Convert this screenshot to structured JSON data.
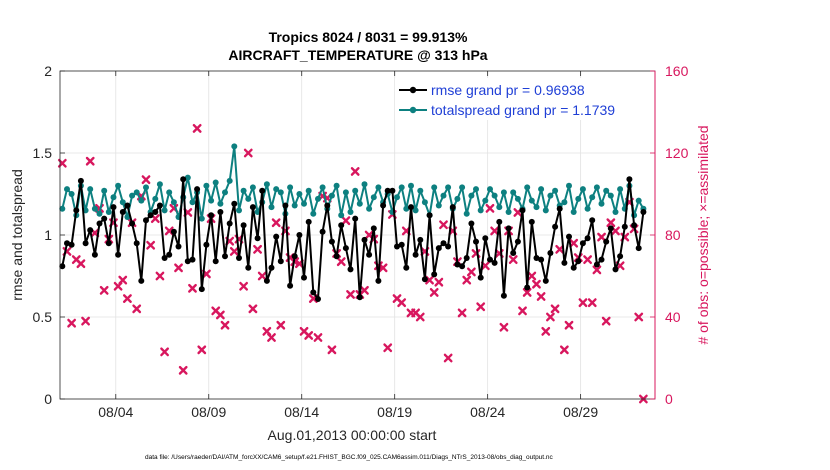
{
  "chart_data": {
    "type": "line",
    "title": "Tropics 8024 / 8031 = 99.913%",
    "subtitle": "AIRCRAFT_TEMPERATURE @ 313 hPa",
    "xlabel": "Aug.01,2013 00:00:00 start",
    "ylabel": "rmse and totalspread",
    "y2label": "# of obs: o=possible; ×=assimilated",
    "footnote": "data file: /Users/raeder/DAI/ATM_forcXX/CAM6_setup/f.e21.FHIST_BGC.f09_025.CAM6assim.011/Diags_NTrS_2013-08/obs_diag_output.nc",
    "xlim": [
      1,
      33
    ],
    "ylim": [
      0,
      2
    ],
    "y2lim": [
      0,
      160
    ],
    "xticks": [
      4,
      9,
      14,
      19,
      24,
      29
    ],
    "xtick_labels": [
      "08/04",
      "08/09",
      "08/14",
      "08/19",
      "08/24",
      "08/29"
    ],
    "yticks": [
      0,
      0.5,
      1,
      1.5,
      2
    ],
    "ytick_labels": [
      "0",
      "0.5",
      "1",
      "1.5",
      "2"
    ],
    "y2ticks": [
      0,
      40,
      80,
      120,
      160
    ],
    "y2tick_labels": [
      "0",
      "40",
      "80",
      "120",
      "160"
    ],
    "grid": true,
    "legend_position": "top-right",
    "colors": {
      "rmse": "#000000",
      "spread": "#0d8080",
      "obs": "#d8175e",
      "legend_text": "#1f3fd6",
      "right_axis": "#d8175e",
      "grid": "#e2e2e2"
    },
    "series": [
      {
        "name": "rmse grand pr = 0.96938",
        "color": "#000000",
        "x": [
          1.125,
          1.375,
          1.625,
          1.875,
          2.125,
          2.375,
          2.625,
          2.875,
          3.125,
          3.375,
          3.625,
          3.875,
          4.125,
          4.375,
          4.625,
          4.875,
          5.125,
          5.375,
          5.625,
          5.875,
          6.125,
          6.375,
          6.625,
          6.875,
          7.125,
          7.375,
          7.625,
          7.875,
          8.125,
          8.375,
          8.625,
          8.875,
          9.125,
          9.375,
          9.625,
          9.875,
          10.125,
          10.375,
          10.625,
          10.875,
          11.125,
          11.375,
          11.625,
          11.875,
          12.125,
          12.375,
          12.625,
          12.875,
          13.125,
          13.375,
          13.625,
          13.875,
          14.125,
          14.375,
          14.625,
          14.875,
          15.125,
          15.375,
          15.625,
          15.875,
          16.125,
          16.375,
          16.625,
          16.875,
          17.125,
          17.375,
          17.625,
          17.875,
          18.125,
          18.375,
          18.625,
          18.875,
          19.125,
          19.375,
          19.625,
          19.875,
          20.125,
          20.375,
          20.625,
          20.875,
          21.125,
          21.375,
          21.625,
          21.875,
          22.125,
          22.375,
          22.625,
          22.875,
          23.125,
          23.375,
          23.625,
          23.875,
          24.125,
          24.375,
          24.625,
          24.875,
          25.125,
          25.375,
          25.625,
          25.875,
          26.125,
          26.375,
          26.625,
          26.875,
          27.125,
          27.375,
          27.625,
          27.875,
          28.125,
          28.375,
          28.625,
          28.875,
          29.125,
          29.375,
          29.625,
          29.875,
          30.125,
          30.375,
          30.625,
          30.875,
          31.125,
          31.375,
          31.625,
          31.875,
          32.125,
          32.375
        ],
        "values": [
          0.81,
          0.95,
          0.94,
          1.15,
          1.33,
          0.95,
          1.03,
          0.88,
          1.07,
          1.1,
          0.95,
          1.17,
          0.88,
          1.14,
          1.18,
          1.07,
          0.95,
          0.72,
          1.09,
          1.12,
          1.14,
          1.18,
          0.86,
          0.88,
          1.02,
          0.93,
          1.34,
          0.84,
          0.85,
          1.28,
          0.67,
          0.94,
          1.12,
          0.84,
          1.14,
          0.87,
          1.07,
          1.19,
          0.86,
          1.06,
          0.8,
          1.17,
          0.98,
          1.27,
          0.72,
          0.8,
          0.99,
          0.84,
          1.18,
          0.69,
          0.87,
          1.0,
          0.74,
          1.08,
          0.65,
          0.61,
          1.02,
          1.18,
          0.96,
          0.87,
          1.06,
          0.92,
          0.79,
          1.1,
          0.62,
          0.97,
          0.88,
          1.04,
          0.72,
          1.18,
          1.27,
          1.27,
          0.93,
          0.94,
          0.8,
          1.17,
          0.88,
          0.97,
          0.73,
          1.12,
          0.76,
          0.92,
          0.95,
          0.93,
          1.17,
          0.82,
          0.81,
          0.86,
          1.07,
          0.96,
          0.74,
          0.98,
          0.85,
          0.83,
          1.08,
          0.63,
          1.04,
          0.89,
          0.96,
          1.15,
          0.68,
          1.08,
          0.86,
          0.85,
          0.72,
          0.89,
          1.05,
          1.16,
          0.83,
          0.99,
          0.8,
          0.84,
          0.95,
          0.98,
          1.09,
          0.82,
          0.85,
          0.96,
          1.04,
          0.79,
          0.87,
          1.05,
          1.34,
          1.06,
          0.92,
          1.14
        ]
      },
      {
        "name": "totalspread grand pr = 1.1739",
        "color": "#0d8080",
        "x": [
          1.125,
          1.375,
          1.625,
          1.875,
          2.125,
          2.375,
          2.625,
          2.875,
          3.125,
          3.375,
          3.625,
          3.875,
          4.125,
          4.375,
          4.625,
          4.875,
          5.125,
          5.375,
          5.625,
          5.875,
          6.125,
          6.375,
          6.625,
          6.875,
          7.125,
          7.375,
          7.625,
          7.875,
          8.125,
          8.375,
          8.625,
          8.875,
          9.125,
          9.375,
          9.625,
          9.875,
          10.125,
          10.375,
          10.625,
          10.875,
          11.125,
          11.375,
          11.625,
          11.875,
          12.125,
          12.375,
          12.625,
          12.875,
          13.125,
          13.375,
          13.625,
          13.875,
          14.125,
          14.375,
          14.625,
          14.875,
          15.125,
          15.375,
          15.625,
          15.875,
          16.125,
          16.375,
          16.625,
          16.875,
          17.125,
          17.375,
          17.625,
          17.875,
          18.125,
          18.375,
          18.625,
          18.875,
          19.125,
          19.375,
          19.625,
          19.875,
          20.125,
          20.375,
          20.625,
          20.875,
          21.125,
          21.375,
          21.625,
          21.875,
          22.125,
          22.375,
          22.625,
          22.875,
          23.125,
          23.375,
          23.625,
          23.875,
          24.125,
          24.375,
          24.625,
          24.875,
          25.125,
          25.375,
          25.625,
          25.875,
          26.125,
          26.375,
          26.625,
          26.875,
          27.125,
          27.375,
          27.625,
          27.875,
          28.125,
          28.375,
          28.625,
          28.875,
          29.125,
          29.375,
          29.625,
          29.875,
          30.125,
          30.375,
          30.625,
          30.875,
          31.125,
          31.375,
          31.625,
          31.875,
          32.125,
          32.375
        ],
        "values": [
          1.16,
          1.28,
          1.25,
          1.12,
          1.3,
          1.15,
          1.28,
          1.16,
          1.13,
          1.27,
          1.14,
          1.23,
          1.3,
          1.2,
          1.11,
          1.24,
          1.26,
          1.21,
          1.29,
          1.14,
          1.22,
          1.31,
          1.15,
          1.26,
          1.2,
          1.11,
          1.23,
          1.35,
          1.2,
          1.26,
          1.1,
          1.3,
          1.21,
          1.32,
          1.19,
          1.26,
          1.33,
          1.54,
          1.15,
          1.27,
          1.22,
          1.29,
          1.14,
          1.2,
          1.31,
          1.17,
          1.28,
          1.26,
          1.13,
          1.29,
          1.18,
          1.25,
          1.19,
          1.27,
          1.13,
          1.22,
          1.29,
          1.16,
          1.24,
          1.3,
          1.12,
          1.26,
          1.14,
          1.27,
          1.19,
          1.31,
          1.16,
          1.23,
          1.29,
          1.2,
          1.25,
          1.14,
          1.23,
          1.29,
          1.16,
          1.3,
          1.15,
          1.27,
          1.2,
          1.12,
          1.29,
          1.18,
          1.24,
          1.29,
          1.16,
          1.22,
          1.29,
          1.13,
          1.24,
          1.28,
          1.15,
          1.21,
          1.28,
          1.24,
          1.17,
          1.26,
          1.14,
          1.26,
          1.22,
          1.16,
          1.29,
          1.21,
          1.17,
          1.28,
          1.15,
          1.24,
          1.27,
          1.18,
          1.2,
          1.3,
          1.14,
          1.22,
          1.28,
          1.16,
          1.23,
          1.29,
          1.19,
          1.27,
          1.24,
          1.14,
          1.28,
          1.16,
          1.3,
          1.12,
          1.21,
          1.16
        ]
      }
    ],
    "obs_count": {
      "name": "# of obs (assimilated)",
      "marker": "x",
      "color": "#d8175e",
      "x": [
        1.125,
        1.375,
        1.625,
        1.875,
        2.125,
        2.375,
        2.625,
        2.875,
        3.125,
        3.375,
        3.625,
        3.875,
        4.125,
        4.375,
        4.625,
        4.875,
        5.125,
        5.375,
        5.625,
        5.875,
        6.125,
        6.375,
        6.625,
        6.875,
        7.125,
        7.375,
        7.625,
        7.875,
        8.125,
        8.375,
        8.625,
        8.875,
        9.125,
        9.375,
        9.625,
        9.875,
        10.125,
        10.375,
        10.625,
        10.875,
        11.125,
        11.375,
        11.625,
        11.875,
        12.125,
        12.375,
        12.625,
        12.875,
        13.125,
        13.375,
        13.625,
        13.875,
        14.125,
        14.375,
        14.625,
        14.875,
        15.125,
        15.375,
        15.625,
        15.875,
        16.125,
        16.375,
        16.625,
        16.875,
        17.125,
        17.375,
        17.625,
        17.875,
        18.125,
        18.375,
        18.625,
        18.875,
        19.125,
        19.375,
        19.625,
        19.875,
        20.125,
        20.375,
        20.625,
        20.875,
        21.125,
        21.375,
        21.625,
        21.875,
        22.125,
        22.375,
        22.625,
        22.875,
        23.125,
        23.375,
        23.625,
        23.875,
        24.125,
        24.375,
        24.625,
        24.875,
        25.125,
        25.375,
        25.625,
        25.875,
        26.125,
        26.375,
        26.625,
        26.875,
        27.125,
        27.375,
        27.625,
        27.875,
        28.125,
        28.375,
        28.625,
        28.875,
        29.125,
        29.375,
        29.625,
        29.875,
        30.125,
        30.375,
        30.625,
        30.875,
        31.125,
        31.375,
        31.625,
        31.875,
        32.125,
        32.375
      ],
      "values": [
        115,
        72,
        37,
        68,
        66,
        38,
        116,
        81,
        93,
        53,
        78,
        86,
        55,
        58,
        49,
        86,
        44,
        99,
        107,
        75,
        88,
        60,
        23,
        82,
        93,
        64,
        14,
        91,
        54,
        132,
        24,
        61,
        88,
        43,
        41,
        36,
        77,
        72,
        78,
        55,
        120,
        44,
        73,
        60,
        33,
        30,
        86,
        36,
        82,
        69,
        67,
        66,
        33,
        31,
        49,
        30,
        99,
        98,
        24,
        71,
        67,
        87,
        51,
        111,
        51,
        53,
        80,
        78,
        65,
        64,
        25,
        90,
        49,
        47,
        82,
        42,
        42,
        40,
        72,
        58,
        52,
        57,
        85,
        20,
        82,
        67,
        42,
        58,
        62,
        71,
        45,
        65,
        93,
        82,
        71,
        35,
        82,
        68,
        91,
        43,
        52,
        60,
        56,
        50,
        33,
        40,
        44,
        73,
        24,
        36,
        76,
        69,
        47,
        68,
        47,
        63,
        79,
        38,
        86,
        82,
        65,
        79,
        96,
        83,
        40,
        0
      ]
    }
  }
}
